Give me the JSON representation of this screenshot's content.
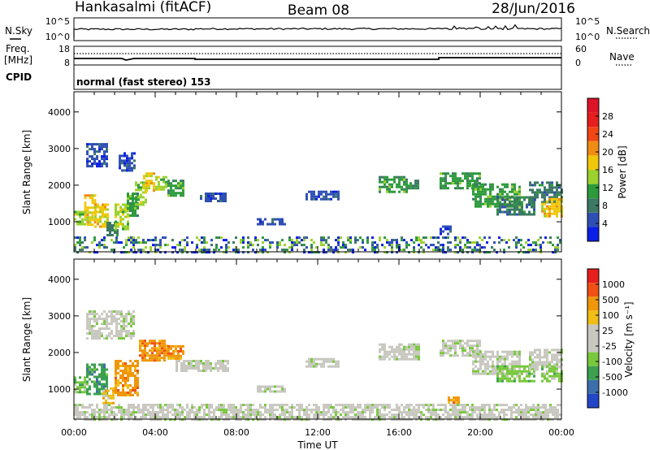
{
  "header": {
    "radar": "Hankasalmi (fitACF)",
    "beam": "Beam 08",
    "date": "28/Jun/2016"
  },
  "noise_panel": {
    "left_label": "N.Sky",
    "left_ticks": [
      "10^5",
      "10^0"
    ],
    "right_ticks": [
      "10^5",
      "10^0"
    ],
    "right_label": "N.Search"
  },
  "freq_panel": {
    "left_label_1": "Freq.",
    "left_label_2": "[MHz]",
    "left_ticks": [
      "18",
      "8"
    ],
    "right_ticks": [
      "60",
      "0"
    ],
    "right_label": "Nave",
    "cpid_label": "CPID",
    "cpid_text": "normal (fast stereo) 153"
  },
  "chart_data": [
    {
      "type": "heatmap",
      "panel": "power",
      "ylabel": "Slant Range [km]",
      "xlabel": "",
      "x_ticks": [
        "00:00",
        "04:00",
        "08:00",
        "12:00",
        "16:00",
        "20:00",
        "00:00"
      ],
      "y_ticks": [
        "1000",
        "2000",
        "3000",
        "4000"
      ],
      "xlim_hours": [
        0,
        24
      ],
      "ylim_km": [
        180,
        4550
      ],
      "colorbar": {
        "label": "Power [dB]",
        "tick_labels": [
          "4",
          "8",
          "12",
          "16",
          "20",
          "24",
          "28"
        ],
        "colors": [
          "#0a1ee6",
          "#2f4fb4",
          "#3c7864",
          "#2d9b3c",
          "#9bd22d",
          "#f0c80a",
          "#f08c14",
          "#f04614",
          "#e61e1e",
          "#dc1428"
        ]
      },
      "regions": [
        {
          "t0": 0.0,
          "t1": 0.5,
          "r0": 950,
          "r1": 1300,
          "level": 4
        },
        {
          "t0": 0.5,
          "t1": 1.0,
          "r0": 900,
          "r1": 1750,
          "level": 5
        },
        {
          "t0": 1.0,
          "t1": 1.7,
          "r0": 900,
          "r1": 1500,
          "level": 5
        },
        {
          "t0": 1.6,
          "t1": 2.2,
          "r0": 650,
          "r1": 1000,
          "level": 2
        },
        {
          "t0": 2.0,
          "t1": 2.7,
          "r0": 800,
          "r1": 1500,
          "level": 4
        },
        {
          "t0": 2.6,
          "t1": 3.2,
          "r0": 1200,
          "r1": 1800,
          "level": 3
        },
        {
          "t0": 3.0,
          "t1": 3.6,
          "r0": 1500,
          "r1": 2100,
          "level": 4
        },
        {
          "t0": 3.4,
          "t1": 4.0,
          "r0": 1850,
          "r1": 2350,
          "level": 5
        },
        {
          "t0": 4.0,
          "t1": 4.6,
          "r0": 1900,
          "r1": 2250,
          "level": 4
        },
        {
          "t0": 4.6,
          "t1": 5.4,
          "r0": 1750,
          "r1": 2150,
          "level": 3
        },
        {
          "t0": 0.6,
          "t1": 1.6,
          "r0": 2500,
          "r1": 3150,
          "level": 1
        },
        {
          "t0": 2.2,
          "t1": 3.0,
          "r0": 2400,
          "r1": 2900,
          "level": 1
        },
        {
          "t0": 6.2,
          "t1": 7.5,
          "r0": 1550,
          "r1": 1800,
          "level": 1
        },
        {
          "t0": 9.0,
          "t1": 10.4,
          "r0": 950,
          "r1": 1100,
          "level": 1
        },
        {
          "t0": 11.4,
          "t1": 13.0,
          "r0": 1650,
          "r1": 1850,
          "level": 1
        },
        {
          "t0": 15.0,
          "t1": 16.4,
          "r0": 1850,
          "r1": 2250,
          "level": 3
        },
        {
          "t0": 16.4,
          "t1": 17.0,
          "r0": 1950,
          "r1": 2150,
          "level": 2
        },
        {
          "t0": 18.0,
          "t1": 18.6,
          "r0": 700,
          "r1": 900,
          "level": 1
        },
        {
          "t0": 18.0,
          "t1": 20.0,
          "r0": 1900,
          "r1": 2350,
          "level": 3
        },
        {
          "t0": 19.6,
          "t1": 22.0,
          "r0": 1450,
          "r1": 2050,
          "level": 3
        },
        {
          "t0": 20.8,
          "t1": 22.6,
          "r0": 1200,
          "r1": 1700,
          "level": 2
        },
        {
          "t0": 22.4,
          "t1": 24.0,
          "r0": 1550,
          "r1": 2100,
          "level": 2
        },
        {
          "t0": 23.0,
          "t1": 24.0,
          "r0": 1150,
          "r1": 1650,
          "level": 5
        },
        {
          "t0": 0.0,
          "t1": 24.0,
          "r0": 200,
          "r1": 600,
          "level": 0
        }
      ]
    },
    {
      "type": "heatmap",
      "panel": "velocity",
      "ylabel": "Slant Range [km]",
      "xlabel": "Time UT",
      "x_ticks": [
        "00:00",
        "04:00",
        "08:00",
        "12:00",
        "16:00",
        "20:00",
        "00:00"
      ],
      "y_ticks": [
        "1000",
        "2000",
        "3000",
        "4000"
      ],
      "xlim_hours": [
        0,
        24
      ],
      "ylim_km": [
        180,
        4550
      ],
      "colorbar": {
        "label": "Velocity [m s⁻¹]",
        "tick_labels": [
          "1000",
          "500",
          "100",
          "25",
          "-25",
          "-100",
          "-500",
          "-1000"
        ],
        "colors": [
          "#2346c8",
          "#3c6eaa",
          "#3ca050",
          "#78c83c",
          "#c8c8c0",
          "#c8c8c0",
          "#f0be14",
          "#f0960a",
          "#f05014",
          "#e61e1e"
        ]
      },
      "regions": [
        {
          "t0": 0.0,
          "t1": 0.6,
          "r0": 950,
          "r1": 1350,
          "level": 3
        },
        {
          "t0": 0.6,
          "t1": 1.6,
          "r0": 900,
          "r1": 1700,
          "level": 2
        },
        {
          "t0": 1.4,
          "t1": 2.0,
          "r0": 650,
          "r1": 1050,
          "level": 6
        },
        {
          "t0": 2.0,
          "t1": 3.2,
          "r0": 850,
          "r1": 1800,
          "level": 7
        },
        {
          "t0": 3.2,
          "t1": 4.6,
          "r0": 1800,
          "r1": 2350,
          "level": 7
        },
        {
          "t0": 4.6,
          "t1": 5.4,
          "r0": 1850,
          "r1": 2200,
          "level": 7
        },
        {
          "t0": 0.6,
          "t1": 3.0,
          "r0": 2400,
          "r1": 3150,
          "level": 4
        },
        {
          "t0": 5.0,
          "t1": 7.6,
          "r0": 1500,
          "r1": 1800,
          "level": 4
        },
        {
          "t0": 9.0,
          "t1": 10.4,
          "r0": 950,
          "r1": 1100,
          "level": 4
        },
        {
          "t0": 11.4,
          "t1": 13.0,
          "r0": 1650,
          "r1": 1850,
          "level": 4
        },
        {
          "t0": 15.0,
          "t1": 17.0,
          "r0": 1850,
          "r1": 2250,
          "level": 4
        },
        {
          "t0": 18.4,
          "t1": 19.0,
          "r0": 650,
          "r1": 800,
          "level": 7
        },
        {
          "t0": 18.0,
          "t1": 20.0,
          "r0": 1900,
          "r1": 2350,
          "level": 4
        },
        {
          "t0": 19.6,
          "t1": 22.0,
          "r0": 1450,
          "r1": 2050,
          "level": 4
        },
        {
          "t0": 20.8,
          "t1": 22.6,
          "r0": 1250,
          "r1": 1650,
          "level": 3
        },
        {
          "t0": 22.4,
          "t1": 24.0,
          "r0": 1550,
          "r1": 2100,
          "level": 4
        },
        {
          "t0": 23.0,
          "t1": 24.0,
          "r0": 1200,
          "r1": 1650,
          "level": 3
        },
        {
          "t0": 0.0,
          "t1": 24.0,
          "r0": 200,
          "r1": 600,
          "level": 4
        }
      ]
    }
  ]
}
